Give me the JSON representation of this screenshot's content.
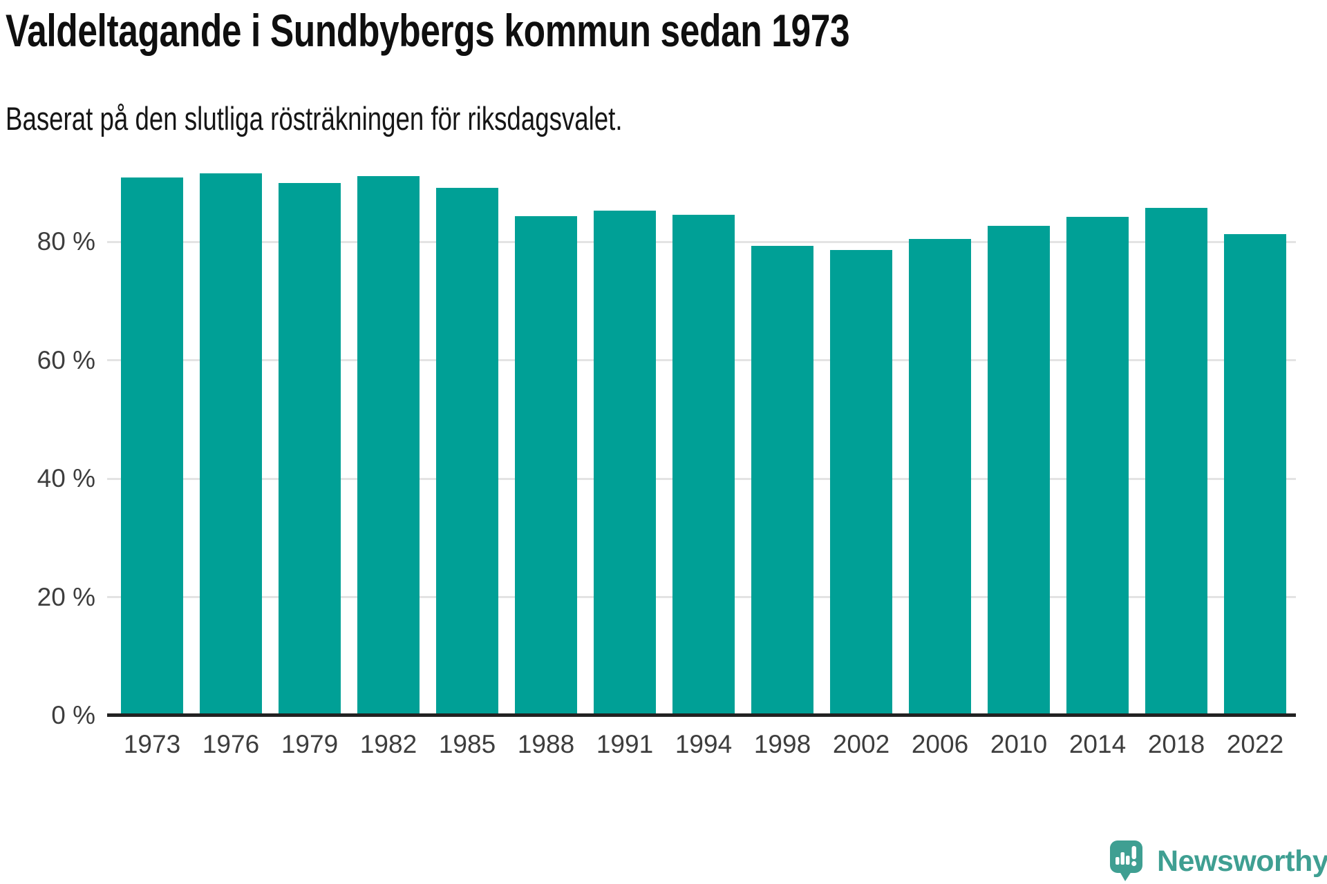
{
  "chart_data": {
    "type": "bar",
    "title": "Valdeltagande i Sundbybergs kommun sedan 1973",
    "subtitle": "Baserat på den slutliga rösträkningen för riksdagsvalet.",
    "categories": [
      "1973",
      "1976",
      "1979",
      "1982",
      "1985",
      "1988",
      "1991",
      "1994",
      "1998",
      "2002",
      "2006",
      "2010",
      "2014",
      "2018",
      "2022"
    ],
    "values": [
      90.8,
      91.5,
      89.9,
      91.1,
      89.1,
      84.3,
      85.3,
      84.5,
      79.3,
      78.6,
      80.5,
      82.7,
      84.2,
      85.7,
      81.3
    ],
    "unit": "%",
    "xlabel": "",
    "ylabel": "",
    "y_ticks": [
      {
        "value": 0,
        "label": "0 %"
      },
      {
        "value": 20,
        "label": "20 %"
      },
      {
        "value": 40,
        "label": "40 %"
      },
      {
        "value": 60,
        "label": "60 %"
      },
      {
        "value": 80,
        "label": "80 %"
      }
    ],
    "ylim": [
      0,
      92.8
    ],
    "grid": "horizontal",
    "legend": "none",
    "bar_color": "#00a096"
  },
  "branding": {
    "logo_text": "Newsworthy",
    "logo_icon": "newsworthy-speech-bubble-chart-icon",
    "logo_color": "#3f9f92"
  }
}
